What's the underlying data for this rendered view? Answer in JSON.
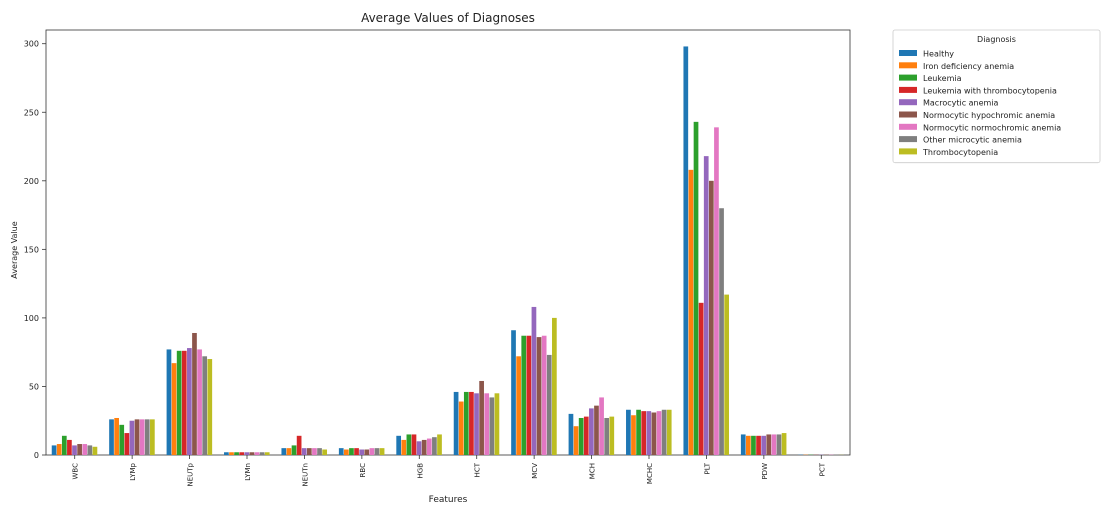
{
  "chart_data": {
    "type": "bar",
    "title": "Average Values of Diagnoses",
    "xlabel": "Features",
    "ylabel": "Average Value",
    "ylim": [
      0,
      310
    ],
    "yticks": [
      0,
      50,
      100,
      150,
      200,
      250,
      300
    ],
    "categories": [
      "WBC",
      "LYMp",
      "NEUTp",
      "LYMn",
      "NEUTn",
      "RBC",
      "HGB",
      "HCT",
      "MCV",
      "MCH",
      "MCHC",
      "PLT",
      "PDW",
      "PCT"
    ],
    "legend": {
      "title": "Diagnosis",
      "placement": "outside-top-right"
    },
    "series": [
      {
        "name": "Healthy",
        "color": "#1f77b4",
        "values": [
          7,
          26,
          77,
          2,
          5,
          5,
          14,
          46,
          91,
          30,
          33,
          298,
          15,
          0.2
        ]
      },
      {
        "name": "Iron deficiency anemia",
        "color": "#ff7f0e",
        "values": [
          8,
          27,
          67,
          2,
          5,
          4,
          11,
          39,
          72,
          21,
          29,
          208,
          14,
          0.2
        ]
      },
      {
        "name": "Leukemia",
        "color": "#2ca02c",
        "values": [
          14,
          22,
          76,
          2,
          7,
          5,
          15,
          46,
          87,
          27,
          33,
          243,
          14,
          0.2
        ]
      },
      {
        "name": "Leukemia with thrombocytopenia",
        "color": "#d62728",
        "values": [
          11,
          16,
          76,
          2,
          14,
          5,
          15,
          46,
          87,
          28,
          32,
          111,
          14,
          0.1
        ]
      },
      {
        "name": "Macrocytic anemia",
        "color": "#9467bd",
        "values": [
          7,
          25,
          78,
          2,
          5,
          4,
          10,
          45,
          108,
          34,
          32,
          218,
          14,
          0.2
        ]
      },
      {
        "name": "Normocytic hypochromic anemia",
        "color": "#8c564b",
        "values": [
          8,
          26,
          89,
          2,
          5,
          4,
          11,
          54,
          86,
          36,
          31,
          200,
          15,
          0.2
        ]
      },
      {
        "name": "Normocytic normochromic anemia",
        "color": "#e377c2",
        "values": [
          8,
          26,
          77,
          2,
          5,
          5,
          12,
          45,
          87,
          42,
          32,
          239,
          15,
          0.2
        ]
      },
      {
        "name": "Other microcytic anemia",
        "color": "#7f7f7f",
        "values": [
          7,
          26,
          72,
          2,
          5,
          5,
          13,
          42,
          73,
          27,
          33,
          180,
          15,
          0.2
        ]
      },
      {
        "name": "Thrombocytopenia",
        "color": "#bcbd22",
        "values": [
          6,
          26,
          70,
          2,
          4,
          5,
          15,
          45,
          100,
          28,
          33,
          117,
          16,
          0.1
        ]
      }
    ]
  }
}
